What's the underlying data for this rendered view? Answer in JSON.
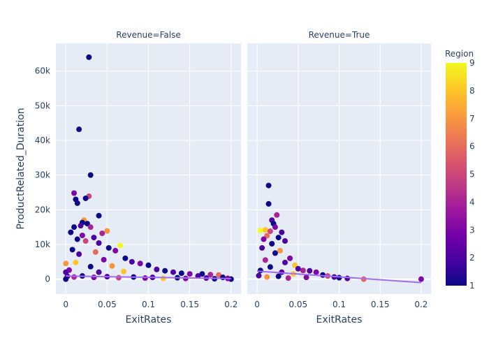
{
  "chart_data": {
    "type": "scatter",
    "facets": [
      {
        "title": "Revenue=False",
        "points": [
          {
            "x": 0.028,
            "y": 64000,
            "r": 1
          },
          {
            "x": 0.016,
            "y": 43200,
            "r": 1
          },
          {
            "x": 0.03,
            "y": 30000,
            "r": 1
          },
          {
            "x": 0.01,
            "y": 24800,
            "r": 3
          },
          {
            "x": 0.028,
            "y": 23900,
            "r": 5
          },
          {
            "x": 0.024,
            "y": 23300,
            "r": 1
          },
          {
            "x": 0.012,
            "y": 23000,
            "r": 1
          },
          {
            "x": 0.014,
            "y": 21900,
            "r": 1
          },
          {
            "x": 0.04,
            "y": 18300,
            "r": 1
          },
          {
            "x": 0.022,
            "y": 17000,
            "r": 7
          },
          {
            "x": 0.02,
            "y": 16300,
            "r": 1
          },
          {
            "x": 0.026,
            "y": 16000,
            "r": 1
          },
          {
            "x": 0.018,
            "y": 15400,
            "r": 2
          },
          {
            "x": 0.01,
            "y": 15000,
            "r": 1
          },
          {
            "x": 0.03,
            "y": 15000,
            "r": 4
          },
          {
            "x": 0.006,
            "y": 13500,
            "r": 1
          },
          {
            "x": 0.05,
            "y": 13900,
            "r": 7
          },
          {
            "x": 0.044,
            "y": 13200,
            "r": 4
          },
          {
            "x": 0.02,
            "y": 12600,
            "r": 3
          },
          {
            "x": 0.034,
            "y": 12000,
            "r": 2
          },
          {
            "x": 0.014,
            "y": 11500,
            "r": 1
          },
          {
            "x": 0.024,
            "y": 11000,
            "r": 5
          },
          {
            "x": 0.04,
            "y": 10400,
            "r": 2
          },
          {
            "x": 0.066,
            "y": 9700,
            "r": 9
          },
          {
            "x": 0.052,
            "y": 9000,
            "r": 1
          },
          {
            "x": 0.008,
            "y": 8500,
            "r": 1
          },
          {
            "x": 0.06,
            "y": 8200,
            "r": 3
          },
          {
            "x": 0.036,
            "y": 7800,
            "r": 6
          },
          {
            "x": 0.016,
            "y": 7200,
            "r": 2
          },
          {
            "x": 0.072,
            "y": 6000,
            "r": 1
          },
          {
            "x": 0.046,
            "y": 5600,
            "r": 3
          },
          {
            "x": 0.08,
            "y": 5000,
            "r": 2
          },
          {
            "x": 0.012,
            "y": 4800,
            "r": 8
          },
          {
            "x": 0.09,
            "y": 4500,
            "r": 3
          },
          {
            "x": 0.1,
            "y": 4000,
            "r": 1
          },
          {
            "x": 0.056,
            "y": 3800,
            "r": 7
          },
          {
            "x": 0.03,
            "y": 3600,
            "r": 1
          },
          {
            "x": 0.11,
            "y": 2800,
            "r": 2
          },
          {
            "x": 0.004,
            "y": 2600,
            "r": 3
          },
          {
            "x": 0.12,
            "y": 2400,
            "r": 1
          },
          {
            "x": 0.07,
            "y": 2200,
            "r": 8
          },
          {
            "x": 0.13,
            "y": 2000,
            "r": 2
          },
          {
            "x": 0.04,
            "y": 2000,
            "r": 2
          },
          {
            "x": 0.14,
            "y": 1700,
            "r": 1
          },
          {
            "x": 0.15,
            "y": 1500,
            "r": 3
          },
          {
            "x": 0.165,
            "y": 1500,
            "r": 1
          },
          {
            "x": 0.175,
            "y": 1300,
            "r": 4
          },
          {
            "x": 0.185,
            "y": 1200,
            "r": 6
          },
          {
            "x": 0.16,
            "y": 900,
            "r": 2
          },
          {
            "x": 0.19,
            "y": 500,
            "r": 1
          },
          {
            "x": 0.2,
            "y": 0,
            "r": 1
          },
          {
            "x": 0.002,
            "y": 800,
            "r": 2
          },
          {
            "x": 0.01,
            "y": 600,
            "r": 4
          },
          {
            "x": 0.02,
            "y": 900,
            "r": 1
          },
          {
            "x": 0.034,
            "y": 500,
            "r": 3
          },
          {
            "x": 0.05,
            "y": 700,
            "r": 2
          },
          {
            "x": 0.064,
            "y": 400,
            "r": 5
          },
          {
            "x": 0.082,
            "y": 600,
            "r": 1
          },
          {
            "x": 0.096,
            "y": 300,
            "r": 3
          },
          {
            "x": 0.105,
            "y": 500,
            "r": 2
          },
          {
            "x": 0.118,
            "y": 200,
            "r": 8
          },
          {
            "x": 0.135,
            "y": 400,
            "r": 1
          },
          {
            "x": 0.145,
            "y": 200,
            "r": 3
          },
          {
            "x": 0.17,
            "y": 300,
            "r": 2
          },
          {
            "x": 0.18,
            "y": 100,
            "r": 1
          },
          {
            "x": 0.196,
            "y": 200,
            "r": 3
          },
          {
            "x": 0.0,
            "y": 0,
            "r": 1
          },
          {
            "x": 0.0,
            "y": 2000,
            "r": 2
          },
          {
            "x": 0.0,
            "y": 4500,
            "r": 7
          }
        ],
        "trend": [
          {
            "x": 0,
            "y": 900
          },
          {
            "x": 0.2,
            "y": 150
          }
        ]
      },
      {
        "title": "Revenue=True",
        "points": [
          {
            "x": 0.014,
            "y": 27000,
            "r": 1
          },
          {
            "x": 0.014,
            "y": 21700,
            "r": 1
          },
          {
            "x": 0.018,
            "y": 17000,
            "r": 2
          },
          {
            "x": 0.024,
            "y": 18500,
            "r": 4
          },
          {
            "x": 0.02,
            "y": 16000,
            "r": 1
          },
          {
            "x": 0.022,
            "y": 15000,
            "r": 3
          },
          {
            "x": 0.01,
            "y": 14200,
            "r": 8
          },
          {
            "x": 0.004,
            "y": 14000,
            "r": 9
          },
          {
            "x": 0.016,
            "y": 13800,
            "r": 5
          },
          {
            "x": 0.03,
            "y": 13500,
            "r": 2
          },
          {
            "x": 0.012,
            "y": 12500,
            "r": 6
          },
          {
            "x": 0.026,
            "y": 12000,
            "r": 1
          },
          {
            "x": 0.008,
            "y": 11500,
            "r": 3
          },
          {
            "x": 0.034,
            "y": 11000,
            "r": 2
          },
          {
            "x": 0.018,
            "y": 10200,
            "r": 1
          },
          {
            "x": 0.006,
            "y": 9000,
            "r": 2
          },
          {
            "x": 0.028,
            "y": 8200,
            "r": 7
          },
          {
            "x": 0.022,
            "y": 7500,
            "r": 1
          },
          {
            "x": 0.04,
            "y": 6000,
            "r": 3
          },
          {
            "x": 0.01,
            "y": 5500,
            "r": 4
          },
          {
            "x": 0.034,
            "y": 4800,
            "r": 2
          },
          {
            "x": 0.046,
            "y": 4000,
            "r": 8
          },
          {
            "x": 0.016,
            "y": 3500,
            "r": 1
          },
          {
            "x": 0.05,
            "y": 3000,
            "r": 2
          },
          {
            "x": 0.056,
            "y": 2500,
            "r": 4
          },
          {
            "x": 0.064,
            "y": 2400,
            "r": 2
          },
          {
            "x": 0.072,
            "y": 2000,
            "r": 3
          },
          {
            "x": 0.08,
            "y": 1200,
            "r": 1
          },
          {
            "x": 0.086,
            "y": 900,
            "r": 5
          },
          {
            "x": 0.094,
            "y": 600,
            "r": 2
          },
          {
            "x": 0.1,
            "y": 400,
            "r": 1
          },
          {
            "x": 0.11,
            "y": 200,
            "r": 2
          },
          {
            "x": 0.13,
            "y": 0,
            "r": 6
          },
          {
            "x": 0.2,
            "y": 0,
            "r": 3
          },
          {
            "x": 0.002,
            "y": 1000,
            "r": 2
          },
          {
            "x": 0.012,
            "y": 600,
            "r": 7
          },
          {
            "x": 0.026,
            "y": 800,
            "r": 1
          },
          {
            "x": 0.038,
            "y": 300,
            "r": 4
          },
          {
            "x": 0.06,
            "y": 500,
            "r": 3
          },
          {
            "x": 0.004,
            "y": 2500,
            "r": 1
          },
          {
            "x": 0.03,
            "y": 2000,
            "r": 2
          },
          {
            "x": 0.044,
            "y": 1500,
            "r": 8
          }
        ],
        "trend": [
          {
            "x": 0,
            "y": 2300
          },
          {
            "x": 0.2,
            "y": -1000
          }
        ]
      }
    ],
    "xlabel": "ExitRates",
    "ylabel": "ProductRelated_Duration",
    "xlim": [
      -0.012,
      0.212
    ],
    "ylim": [
      -4300,
      68000
    ],
    "xticks": [
      0,
      0.05,
      0.1,
      0.15,
      0.2
    ],
    "xtick_labels": [
      "0",
      "0.05",
      "0.1",
      "0.15",
      "0.2"
    ],
    "yticks": [
      0,
      10000,
      20000,
      30000,
      40000,
      50000,
      60000
    ],
    "ytick_labels": [
      "0",
      "10k",
      "20k",
      "30k",
      "40k",
      "50k",
      "60k"
    ],
    "colorbar": {
      "title": "Region",
      "min": 1,
      "max": 9,
      "ticks": [
        1,
        2,
        3,
        4,
        5,
        6,
        7,
        8,
        9
      ],
      "tick_labels": [
        "1",
        "2",
        "3",
        "4",
        "5",
        "6",
        "7",
        "8",
        "9"
      ],
      "colors": [
        "#0d0887",
        "#46039f",
        "#7201a8",
        "#9c179e",
        "#bd3786",
        "#d8576b",
        "#ed7953",
        "#fb9f3a",
        "#fdca26",
        "#f0f921"
      ]
    },
    "plot_bg": "#e5ecf6",
    "grid": true
  }
}
